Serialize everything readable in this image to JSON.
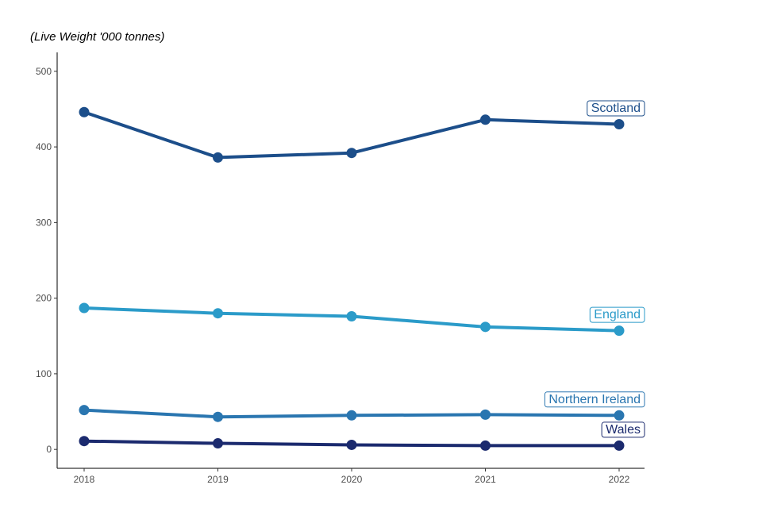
{
  "chart_data": {
    "type": "line",
    "title": "",
    "unit_label": "(Live Weight '000 tonnes)",
    "xlabel": "",
    "ylabel": "",
    "x": [
      "2018",
      "2019",
      "2020",
      "2021",
      "2022"
    ],
    "yticks": [
      "0",
      "100",
      "200",
      "300",
      "400",
      "500"
    ],
    "ylim": [
      -25,
      525
    ],
    "grid": false,
    "legend": "direct labels at the end of each line",
    "series": [
      {
        "name": "Scotland",
        "color": "#1c4e8a",
        "values": [
          446,
          386,
          392,
          436,
          430
        ]
      },
      {
        "name": "England",
        "color": "#2b9bc9",
        "values": [
          187,
          180,
          176,
          162,
          157
        ]
      },
      {
        "name": "Northern Ireland",
        "color": "#2a76b0",
        "values": [
          52,
          43,
          45,
          46,
          45
        ]
      },
      {
        "name": "Wales",
        "color": "#1b2a6e",
        "values": [
          11,
          8,
          6,
          5,
          5
        ]
      }
    ]
  }
}
